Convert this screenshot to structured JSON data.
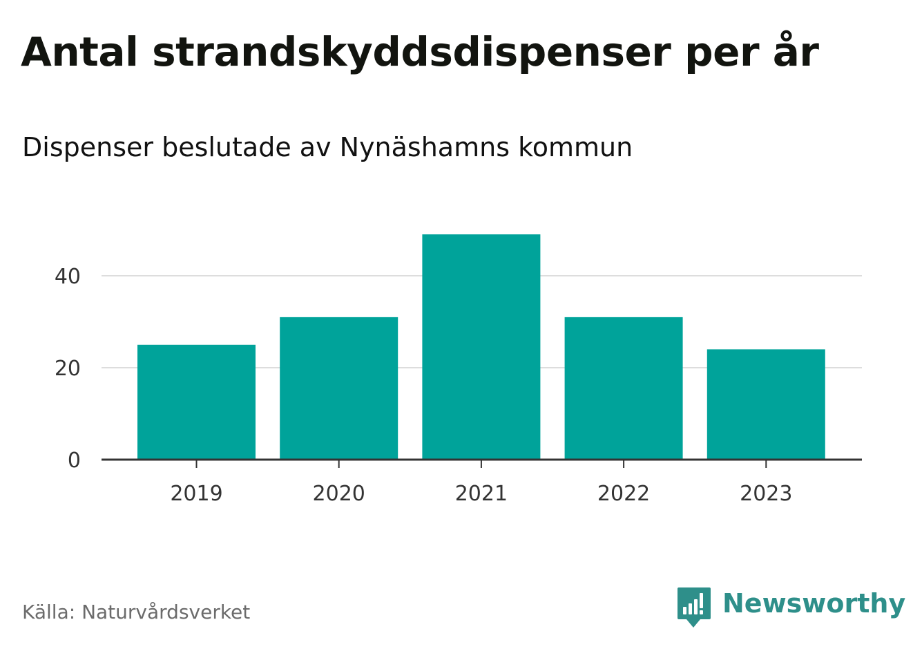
{
  "title": "Antal strandskyddsdispenser per år",
  "subtitle": "Dispenser beslutade av Nynäshamns kommun",
  "source": "Källa: Naturvårdsverket",
  "brand": {
    "name": "Newsworthy",
    "logo_icon": "newsworthy-logo-icon",
    "color": "#2e8f8a"
  },
  "colors": {
    "bar": "#00a39a",
    "grid": "#dddddd",
    "axis": "#333333"
  },
  "chart_data": {
    "type": "bar",
    "title": "Antal strandskyddsdispenser per år",
    "subtitle": "Dispenser beslutade av Nynäshamns kommun",
    "categories": [
      "2019",
      "2020",
      "2021",
      "2022",
      "2023"
    ],
    "values": [
      25,
      31,
      49,
      31,
      24
    ],
    "xlabel": "",
    "ylabel": "",
    "ylim": [
      0,
      50
    ],
    "yticks": [
      0,
      20,
      40
    ],
    "grid": true,
    "legend": "none"
  }
}
